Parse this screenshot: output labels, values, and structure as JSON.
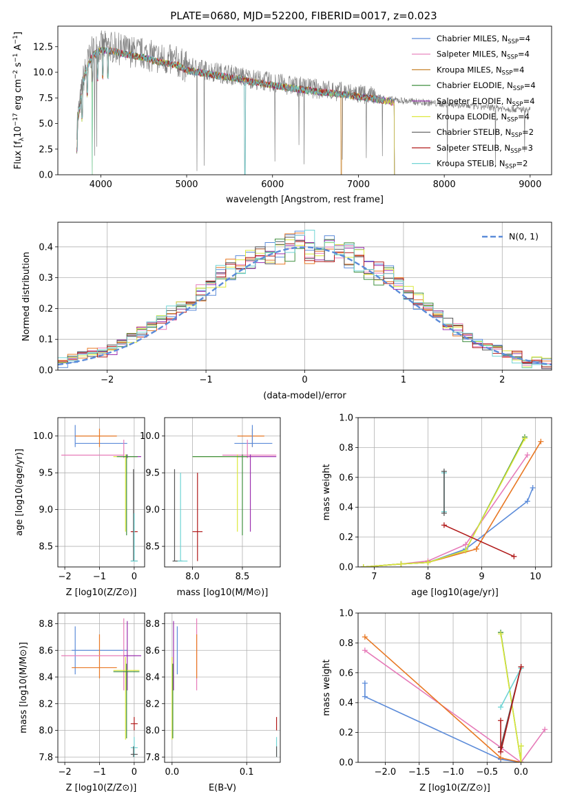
{
  "title": "PLATE=0680, MJD=52200, FIBERID=0017, z=0.023",
  "colors": {
    "Chabrier MILES": "#5b8bd9",
    "Salpeter MILES": "#e67ab8",
    "Kroupa MILES": "#c8832a",
    "Chabrier ELODIE": "#3f8f3f",
    "Salpeter ELODIE": "#9b2fae",
    "Kroupa ELODIE": "#dce83a",
    "Chabrier STELIB": "#555555",
    "Salpeter STELIB": "#b01818",
    "Kroupa STELIB": "#6fd4d4",
    "normal_curve": "#5b8bd9",
    "data_spectrum": "#808080",
    "orange": "#e87722"
  },
  "chart_data": [
    {
      "id": "spectrum",
      "type": "line",
      "xlabel": "wavelength [Angstrom, rest frame]",
      "ylabel": "Flux [f_λ10^-17 erg cm^-2 s^-1 A^-1]",
      "xlim": [
        3500,
        9250
      ],
      "ylim": [
        0,
        14.5
      ],
      "xticks": [
        "4000",
        "5000",
        "6000",
        "7000",
        "8000",
        "9000"
      ],
      "yticks": [
        "0.0",
        "2.5",
        "5.0",
        "7.5",
        "10.0",
        "12.5"
      ],
      "grid": false,
      "legend_position": "top-right",
      "legend": [
        {
          "name": "Chabrier MILES",
          "sub": "4"
        },
        {
          "name": "Salpeter MILES",
          "sub": "4"
        },
        {
          "name": "Kroupa MILES",
          "sub": "4"
        },
        {
          "name": "Chabrier ELODIE",
          "sub": "4"
        },
        {
          "name": "Salpeter ELODIE",
          "sub": "4"
        },
        {
          "name": "Kroupa ELODIE",
          "sub": "4"
        },
        {
          "name": "Chabrier STELIB",
          "sub": "2"
        },
        {
          "name": "Salpeter STELIB",
          "sub": "3"
        },
        {
          "name": "Kroupa STELIB",
          "sub": "2"
        }
      ],
      "legend_text": [
        "Chabrier MILES, N",
        "Salpeter MILES, N",
        "Kroupa MILES, N",
        "Chabrier ELODIE, N",
        "Salpeter ELODIE, N",
        "Kroupa ELODIE, N",
        "Chabrier STELIB, N",
        "Salpeter STELIB, N",
        "Kroupa STELIB, N"
      ],
      "legend_sub": "SSP",
      "legend_eq": [
        "=4",
        "=4",
        "=4",
        "=4",
        "=4",
        "=4",
        "=2",
        "=3",
        "=2"
      ],
      "continuum": [
        [
          3720,
          5.0
        ],
        [
          3760,
          7.0
        ],
        [
          3800,
          9.5
        ],
        [
          3850,
          11.0
        ],
        [
          3900,
          12.0
        ],
        [
          4000,
          12.5
        ],
        [
          4100,
          12.5
        ],
        [
          4200,
          12.3
        ],
        [
          4300,
          12.1
        ],
        [
          4500,
          11.8
        ],
        [
          4700,
          11.3
        ],
        [
          4900,
          11.0
        ],
        [
          5000,
          10.5
        ],
        [
          5200,
          10.2
        ],
        [
          5500,
          9.8
        ],
        [
          5800,
          9.3
        ],
        [
          6000,
          9.0
        ],
        [
          6300,
          8.6
        ],
        [
          6600,
          8.3
        ],
        [
          6900,
          8.0
        ],
        [
          7200,
          7.6
        ],
        [
          7400,
          7.3
        ],
        [
          7700,
          7.1
        ],
        [
          8000,
          6.9
        ],
        [
          8500,
          6.6
        ],
        [
          9000,
          6.3
        ]
      ]
    },
    {
      "id": "residuals",
      "type": "line",
      "xlabel": "(data-model)/error",
      "ylabel": "Normed distribution",
      "xlim": [
        -2.5,
        2.5
      ],
      "ylim": [
        0,
        0.48
      ],
      "xticks": [
        "-2",
        "-1",
        "0",
        "1",
        "2"
      ],
      "yticks": [
        "0.0",
        "0.1",
        "0.2",
        "0.3",
        "0.4"
      ],
      "grid": true,
      "legend_position": "top-right",
      "normal_label": "N(0, 1)",
      "bin_edges": [
        -2.5,
        -2.4,
        -2.3,
        -2.2,
        -2.1,
        -2.0,
        -1.9,
        -1.8,
        -1.7,
        -1.6,
        -1.5,
        -1.4,
        -1.3,
        -1.2,
        -1.1,
        -1.0,
        -0.9,
        -0.8,
        -0.7,
        -0.6,
        -0.5,
        -0.4,
        -0.3,
        -0.2,
        -0.1,
        0.0,
        0.1,
        0.2,
        0.3,
        0.4,
        0.5,
        0.6,
        0.7,
        0.8,
        0.9,
        1.0,
        1.1,
        1.2,
        1.3,
        1.4,
        1.5,
        1.6,
        1.7,
        1.8,
        1.9,
        2.0,
        2.1,
        2.2,
        2.3,
        2.4,
        2.5
      ],
      "hist_base": [
        0.025,
        0.04,
        0.05,
        0.055,
        0.06,
        0.07,
        0.09,
        0.11,
        0.125,
        0.145,
        0.16,
        0.18,
        0.2,
        0.225,
        0.25,
        0.275,
        0.3,
        0.32,
        0.34,
        0.36,
        0.37,
        0.38,
        0.39,
        0.395,
        0.4,
        0.4,
        0.395,
        0.39,
        0.38,
        0.37,
        0.355,
        0.34,
        0.32,
        0.3,
        0.28,
        0.255,
        0.23,
        0.2,
        0.175,
        0.15,
        0.13,
        0.11,
        0.09,
        0.075,
        0.06,
        0.05,
        0.04,
        0.03,
        0.025,
        0.02
      ]
    },
    {
      "id": "age_vs_Z",
      "type": "scatter",
      "xlabel": "Z [log10(Z/Z⊙)]",
      "ylabel": "age [log10(age/yr)]",
      "xlim": [
        -2.2,
        0.3
      ],
      "ylim": [
        8.22,
        10.25
      ],
      "xticks": [
        "-2",
        "-1",
        "0"
      ],
      "yticks": [
        "8.5",
        "9.0",
        "9.5",
        "10.0"
      ],
      "grid": true,
      "points": [
        {
          "model": "Chabrier MILES",
          "x": -1.7,
          "y": 9.9,
          "xlo": -1.7,
          "xhi": -0.2,
          "ylo": 9.85,
          "yhi": 10.15
        },
        {
          "model": "Kroupa MILES",
          "x": -1.0,
          "y": 10.0,
          "xlo": -1.7,
          "xhi": -0.5,
          "ylo": 9.85,
          "yhi": 10.1
        },
        {
          "model": "Salpeter MILES",
          "x": -0.3,
          "y": 9.74,
          "xlo": -2.1,
          "xhi": -0.3,
          "ylo": 9.7,
          "yhi": 9.95
        },
        {
          "model": "Salpeter ELODIE",
          "x": -0.2,
          "y": 9.72,
          "xlo": -0.4,
          "xhi": 0.2,
          "ylo": 9.7,
          "yhi": 9.75
        },
        {
          "model": "Kroupa ELODIE",
          "x": -0.25,
          "y": 9.72,
          "xlo": -0.6,
          "xhi": 0.05,
          "ylo": 8.7,
          "yhi": 9.75
        },
        {
          "model": "Chabrier ELODIE",
          "x": -0.22,
          "y": 9.72,
          "xlo": -0.5,
          "xhi": 0.1,
          "ylo": 8.65,
          "yhi": 9.75
        },
        {
          "model": "Salpeter STELIB",
          "x": 0.0,
          "y": 8.7,
          "xlo": -0.1,
          "xhi": 0.1,
          "ylo": 8.7,
          "yhi": 8.72
        },
        {
          "model": "Chabrier STELIB",
          "x": -0.02,
          "y": 8.3,
          "xlo": -0.1,
          "xhi": 0.1,
          "ylo": 8.3,
          "yhi": 9.55
        },
        {
          "model": "Kroupa STELIB",
          "x": 0.0,
          "y": 8.3,
          "xlo": -0.1,
          "xhi": 0.1,
          "ylo": 8.3,
          "yhi": 8.95
        }
      ]
    },
    {
      "id": "age_vs_mass",
      "type": "scatter",
      "xlabel": "mass [log10(M/M⊙)]",
      "ylabel": "",
      "xlim": [
        7.72,
        8.88
      ],
      "ylim": [
        8.22,
        10.25
      ],
      "xticks": [
        "8.0",
        "8.5"
      ],
      "yticks": [
        "8.5",
        "9.0",
        "9.5",
        "10.0"
      ],
      "grid": true,
      "points": [
        {
          "model": "Kroupa MILES",
          "x": 8.6,
          "y": 10.0,
          "xlo": 8.45,
          "xhi": 8.72,
          "ylo": 9.85,
          "yhi": 10.1
        },
        {
          "model": "Chabrier MILES",
          "x": 8.6,
          "y": 9.9,
          "xlo": 8.42,
          "xhi": 8.8,
          "ylo": 9.85,
          "yhi": 10.15
        },
        {
          "model": "Salpeter MILES",
          "x": 8.55,
          "y": 9.74,
          "xlo": 8.3,
          "xhi": 8.84,
          "ylo": 9.7,
          "yhi": 9.95
        },
        {
          "model": "Kroupa ELODIE",
          "x": 8.45,
          "y": 9.72,
          "xlo": 8.0,
          "xhi": 8.6,
          "ylo": 8.7,
          "yhi": 9.75
        },
        {
          "model": "Salpeter ELODIE",
          "x": 8.58,
          "y": 9.72,
          "xlo": 8.45,
          "xhi": 8.84,
          "ylo": 8.7,
          "yhi": 9.75
        },
        {
          "model": "Chabrier ELODIE",
          "x": 8.5,
          "y": 9.72,
          "xlo": 8.0,
          "xhi": 8.55,
          "ylo": 8.65,
          "yhi": 9.75
        },
        {
          "model": "Salpeter STELIB",
          "x": 8.05,
          "y": 8.7,
          "xlo": 8.0,
          "xhi": 8.1,
          "ylo": 8.3,
          "yhi": 9.5
        },
        {
          "model": "Chabrier STELIB",
          "x": 7.82,
          "y": 8.3,
          "xlo": 7.8,
          "xhi": 7.9,
          "ylo": 8.3,
          "yhi": 9.55
        },
        {
          "model": "Kroupa STELIB",
          "x": 7.88,
          "y": 8.3,
          "xlo": 7.85,
          "xhi": 7.95,
          "ylo": 8.3,
          "yhi": 9.5
        }
      ]
    },
    {
      "id": "massweight_vs_age",
      "type": "line",
      "xlabel": "age  [log10(age/yr)]",
      "ylabel": "mass weight",
      "xlim": [
        6.7,
        10.3
      ],
      "ylim": [
        0,
        1.0
      ],
      "xticks": [
        "7",
        "8",
        "9",
        "10"
      ],
      "yticks": [
        "0.0",
        "0.2",
        "0.4",
        "0.6",
        "0.8",
        "1.0"
      ],
      "grid": true,
      "series": [
        {
          "model": "Chabrier MILES",
          "x": [
            6.8,
            7.5,
            8.0,
            8.7,
            9.85,
            9.95
          ],
          "y": [
            0.0,
            0.02,
            0.03,
            0.12,
            0.44,
            0.53
          ]
        },
        {
          "model": "Salpeter MILES",
          "x": [
            6.8,
            7.5,
            8.0,
            8.7,
            9.85
          ],
          "y": [
            0.0,
            0.02,
            0.04,
            0.15,
            0.75
          ]
        },
        {
          "model": "Kroupa MILES",
          "x": [
            6.8,
            7.5,
            8.0,
            8.9,
            10.1
          ],
          "y": [
            0.0,
            0.02,
            0.03,
            0.12,
            0.84
          ]
        },
        {
          "model": "Chabrier ELODIE",
          "x": [
            6.8,
            7.5,
            8.0,
            8.7,
            9.8
          ],
          "y": [
            0.0,
            0.02,
            0.03,
            0.11,
            0.87
          ]
        },
        {
          "model": "Kroupa ELODIE",
          "x": [
            6.8,
            7.5,
            8.0,
            8.7,
            9.8
          ],
          "y": [
            0.0,
            0.02,
            0.03,
            0.11,
            0.86
          ]
        },
        {
          "model": "Kroupa STELIB",
          "x": [
            8.3,
            8.3
          ],
          "y": [
            0.37,
            0.63
          ]
        },
        {
          "model": "Chabrier STELIB",
          "x": [
            8.3,
            8.3
          ],
          "y": [
            0.36,
            0.64
          ]
        },
        {
          "model": "Salpeter STELIB",
          "x": [
            8.3,
            9.6
          ],
          "y": [
            0.28,
            0.07
          ]
        }
      ]
    },
    {
      "id": "mass_vs_Z",
      "type": "scatter",
      "xlabel": "Z [log10(Z/Z⊙)]",
      "ylabel": "mass [log10(M/M⊙)]",
      "xlim": [
        -2.2,
        0.3
      ],
      "ylim": [
        7.76,
        8.88
      ],
      "xticks": [
        "-2",
        "-1",
        "0"
      ],
      "yticks": [
        "7.8",
        "8.0",
        "8.2",
        "8.4",
        "8.6",
        "8.8"
      ],
      "grid": true,
      "points": [
        {
          "model": "Chabrier MILES",
          "x": -1.7,
          "y": 8.6,
          "xlo": -1.8,
          "xhi": -0.2,
          "ylo": 8.42,
          "yhi": 8.78
        },
        {
          "model": "Kroupa MILES",
          "x": -1.0,
          "y": 8.47,
          "xlo": -1.8,
          "xhi": -0.5,
          "ylo": 8.39,
          "yhi": 8.72
        },
        {
          "model": "Salpeter MILES",
          "x": -0.3,
          "y": 8.56,
          "xlo": -2.1,
          "xhi": -0.3,
          "ylo": 8.3,
          "yhi": 8.84
        },
        {
          "model": "Salpeter ELODIE",
          "x": -0.2,
          "y": 8.56,
          "xlo": -0.3,
          "xhi": 0.2,
          "ylo": 8.3,
          "yhi": 8.82
        },
        {
          "model": "Kroupa ELODIE",
          "x": -0.25,
          "y": 8.45,
          "xlo": -0.6,
          "xhi": 0.15,
          "ylo": 7.93,
          "yhi": 8.55
        },
        {
          "model": "Chabrier ELODIE",
          "x": -0.22,
          "y": 8.44,
          "xlo": -0.6,
          "xhi": 0.15,
          "ylo": 7.94,
          "yhi": 8.5
        },
        {
          "model": "Salpeter STELIB",
          "x": 0.0,
          "y": 8.05,
          "xlo": -0.1,
          "xhi": 0.1,
          "ylo": 8.0,
          "yhi": 8.1
        },
        {
          "model": "Kroupa STELIB",
          "x": 0.0,
          "y": 7.87,
          "xlo": -0.1,
          "xhi": 0.1,
          "ylo": 7.8,
          "yhi": 7.95
        },
        {
          "model": "Chabrier STELIB",
          "x": -0.02,
          "y": 7.82,
          "xlo": -0.1,
          "xhi": 0.1,
          "ylo": 7.8,
          "yhi": 7.88
        }
      ]
    },
    {
      "id": "mass_vs_EBV",
      "type": "scatter",
      "xlabel": "E(B-V)",
      "ylabel": "",
      "xlim": [
        -0.01,
        0.145
      ],
      "ylim": [
        7.76,
        8.88
      ],
      "xticks": [
        "0.0",
        "0.1"
      ],
      "yticks": [
        "7.8",
        "8.0",
        "8.2",
        "8.4",
        "8.6",
        "8.8"
      ],
      "grid": true,
      "points": [
        {
          "model": "Chabrier MILES",
          "x": 0.007,
          "y": 8.6,
          "ylo": 8.42,
          "yhi": 8.78
        },
        {
          "model": "Salpeter MILES",
          "x": 0.033,
          "y": 8.56,
          "ylo": 8.3,
          "yhi": 8.84
        },
        {
          "model": "Kroupa MILES",
          "x": 0.033,
          "y": 8.47,
          "ylo": 8.39,
          "yhi": 8.72
        },
        {
          "model": "Salpeter ELODIE",
          "x": 0.002,
          "y": 8.56,
          "ylo": 8.3,
          "yhi": 8.82
        },
        {
          "model": "Kroupa ELODIE",
          "x": 0.0,
          "y": 8.45,
          "ylo": 7.93,
          "yhi": 8.55
        },
        {
          "model": "Chabrier ELODIE",
          "x": 0.001,
          "y": 8.44,
          "ylo": 7.94,
          "yhi": 8.5
        },
        {
          "model": "Salpeter STELIB",
          "x": 0.14,
          "y": 8.05,
          "ylo": 8.0,
          "yhi": 8.1
        },
        {
          "model": "Kroupa STELIB",
          "x": 0.14,
          "y": 7.87,
          "ylo": 7.8,
          "yhi": 7.95
        },
        {
          "model": "Chabrier STELIB",
          "x": 0.14,
          "y": 7.82,
          "ylo": 7.8,
          "yhi": 7.88
        }
      ]
    },
    {
      "id": "massweight_vs_Z",
      "type": "line",
      "xlabel": "Z [log10(Z/Z⊙)]",
      "ylabel": "mass weight",
      "xlim": [
        -2.4,
        0.45
      ],
      "ylim": [
        0,
        1.0
      ],
      "xticks": [
        "-2.0",
        "-1.5",
        "-1.0",
        "-0.5",
        "0.0"
      ],
      "yticks": [
        "0.0",
        "0.2",
        "0.4",
        "0.6",
        "0.8",
        "1.0"
      ],
      "grid": true,
      "series": [
        {
          "model": "Chabrier MILES",
          "x": [
            -2.3,
            -2.3,
            -0.3,
            0.0
          ],
          "y": [
            0.53,
            0.44,
            0.02,
            0.0
          ]
        },
        {
          "model": "Salpeter MILES",
          "x": [
            -2.3,
            -0.3,
            0.0,
            0.35
          ],
          "y": [
            0.75,
            0.1,
            0.0,
            0.22
          ]
        },
        {
          "model": "Kroupa MILES",
          "x": [
            -2.3,
            -0.3,
            0.0
          ],
          "y": [
            0.84,
            0.03,
            0.0
          ]
        },
        {
          "model": "Chabrier ELODIE",
          "x": [
            -0.3,
            0.0,
            0.0
          ],
          "y": [
            0.87,
            0.0,
            0.11
          ]
        },
        {
          "model": "Kroupa ELODIE",
          "x": [
            -0.3,
            0.0,
            0.0
          ],
          "y": [
            0.86,
            0.0,
            0.11
          ]
        },
        {
          "model": "Kroupa STELIB",
          "x": [
            -0.3,
            0.0
          ],
          "y": [
            0.37,
            0.63
          ]
        },
        {
          "model": "Chabrier STELIB",
          "x": [
            -0.3,
            0.0
          ],
          "y": [
            0.1,
            0.64
          ]
        },
        {
          "model": "Salpeter STELIB",
          "x": [
            -0.3,
            -0.3,
            0.0
          ],
          "y": [
            0.28,
            0.07,
            0.64
          ]
        }
      ]
    }
  ]
}
